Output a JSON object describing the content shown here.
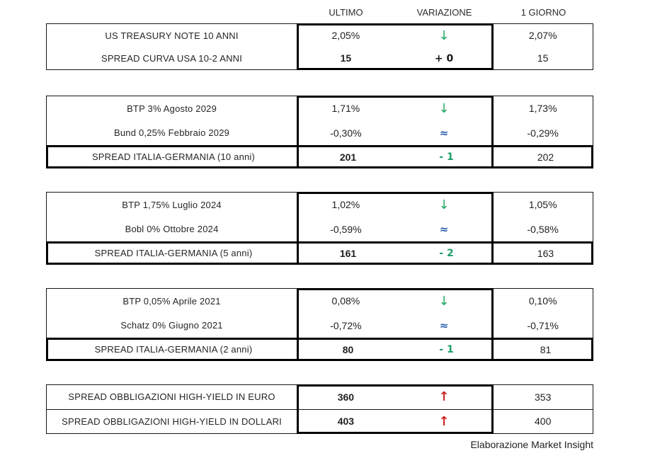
{
  "chart_data": {
    "type": "table",
    "columns": {
      "ultimo": "ULTIMO",
      "variazione": "VARIAZIONE",
      "giorno": "1 GIORNO"
    },
    "colors": {
      "green": "#22a966",
      "blue": "#2d5faf",
      "red": "#cc2424",
      "text": "#1f1f1f"
    },
    "blocks": [
      {
        "rows": [
          {
            "label": "US TREASURY NOTE 10 ANNI",
            "ultimo": "2,05%",
            "ultimo_bold": "false",
            "sym": "↓",
            "variant": "down",
            "giorno": "2,07%"
          },
          {
            "label": "SPREAD CURVA USA 10-2 ANNI",
            "ultimo": "15",
            "ultimo_bold": "true",
            "sym": "+ 0",
            "variant": "flat",
            "giorno": "15"
          }
        ]
      },
      {
        "rows": [
          {
            "label": "BTP 3% Agosto 2029",
            "ultimo": "1,71%",
            "ultimo_bold": "false",
            "sym": "↓",
            "variant": "down",
            "giorno": "1,73%"
          },
          {
            "label": "Bund 0,25% Febbraio 2029",
            "ultimo": "-0,30%",
            "ultimo_bold": "false",
            "sym": "≈",
            "variant": "approx",
            "giorno": "-0,29%"
          }
        ],
        "spread": {
          "label": "SPREAD ITALIA-GERMANIA (10 anni)",
          "ultimo": "201",
          "ultimo_bold": "true",
          "sym": "- 1",
          "variant": "minus",
          "giorno": "202"
        }
      },
      {
        "rows": [
          {
            "label": "BTP 1,75% Luglio 2024",
            "ultimo": "1,02%",
            "ultimo_bold": "false",
            "sym": "↓",
            "variant": "down",
            "giorno": "1,05%"
          },
          {
            "label": "Bobl 0% Ottobre 2024",
            "ultimo": "-0,59%",
            "ultimo_bold": "false",
            "sym": "≈",
            "variant": "approx",
            "giorno": "-0,58%"
          }
        ],
        "spread": {
          "label": "SPREAD ITALIA-GERMANIA (5 anni)",
          "ultimo": "161",
          "ultimo_bold": "true",
          "sym": "- 2",
          "variant": "minus",
          "giorno": "163"
        }
      },
      {
        "rows": [
          {
            "label": "BTP 0,05% Aprile 2021",
            "ultimo": "0,08%",
            "ultimo_bold": "false",
            "sym": "↓",
            "variant": "down",
            "giorno": "0,10%"
          },
          {
            "label": "Schatz 0% Giugno 2021",
            "ultimo": "-0,72%",
            "ultimo_bold": "false",
            "sym": "≈",
            "variant": "approx",
            "giorno": "-0,71%"
          }
        ],
        "spread": {
          "label": "SPREAD ITALIA-GERMANIA (2 anni)",
          "ultimo": "80",
          "ultimo_bold": "true",
          "sym": "- 1",
          "variant": "minus",
          "giorno": "81"
        }
      },
      {
        "rows": [
          {
            "label": "SPREAD OBBLIGAZIONI HIGH-YIELD IN EURO",
            "ultimo": "360",
            "ultimo_bold": "true",
            "sym": "↑",
            "variant": "up",
            "giorno": "353"
          },
          {
            "label": "SPREAD OBBLIGAZIONI HIGH-YIELD IN DOLLARI",
            "ultimo": "403",
            "ultimo_bold": "true",
            "sym": "↑",
            "variant": "up",
            "giorno": "400"
          }
        ]
      }
    ],
    "footnote": "Elaborazione Market Insight"
  }
}
